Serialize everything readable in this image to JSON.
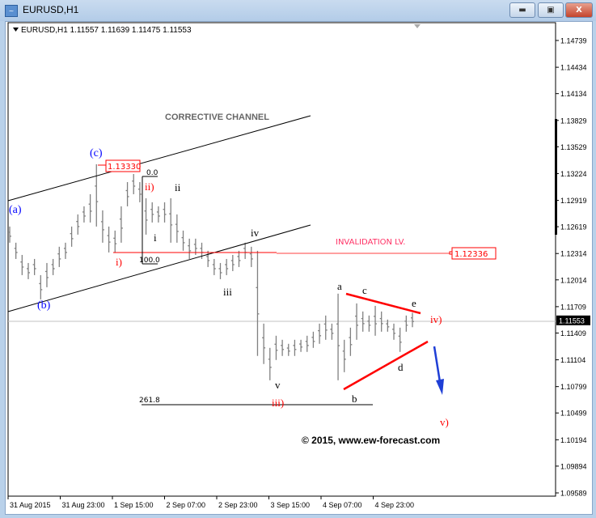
{
  "window": {
    "title": "EURUSD,H1",
    "minimize_icon": "minimize-icon",
    "maximize_icon": "restore-icon",
    "close_icon": "close-icon"
  },
  "chart_data": {
    "type": "ohlc-bar",
    "symbol_header": "EURUSD,H1  1.11557 1.11639 1.11475 1.11553",
    "current_price": 1.11553,
    "current_price_label": "1.11553",
    "ylim": [
      1.09589,
      1.14739
    ],
    "y_ticks": [
      "1.14739",
      "1.14434",
      "1.14134",
      "1.13829",
      "1.13529",
      "1.13224",
      "1.12919",
      "1.12619",
      "1.12314",
      "1.12014",
      "1.11709",
      "1.11409",
      "1.11104",
      "1.10799",
      "1.10499",
      "1.10194",
      "1.09894",
      "1.09589"
    ],
    "x_ticks": [
      "31 Aug 2015",
      "31 Aug 23:00",
      "1 Sep 15:00",
      "2 Sep 07:00",
      "2 Sep 23:00",
      "3 Sep 15:00",
      "4 Sep 07:00",
      "4 Sep 23:00"
    ],
    "highs": [
      1.12621,
      1.12437,
      1.12298,
      1.12206,
      1.12252,
      1.12068,
      1.12206,
      1.12252,
      1.12391,
      1.12437,
      1.12621,
      1.12759,
      1.12851,
      1.12989,
      1.1333,
      1.12805,
      1.12621,
      1.12575,
      1.12851,
      1.13127,
      1.13219,
      1.13127,
      1.12943,
      1.12897,
      1.12851,
      1.12897,
      1.12943,
      1.12759,
      1.12575,
      1.12483,
      1.12483,
      1.12437,
      1.12345,
      1.12252,
      1.12206,
      1.12252,
      1.12298,
      1.12345,
      1.12437,
      1.12391,
      1.12345,
      1.11516,
      1.1124,
      1.11378,
      1.11332,
      1.11286,
      1.11332,
      1.11332,
      1.11378,
      1.11424,
      1.11516,
      1.11608,
      1.11516,
      1.11857,
      1.11332,
      1.1147,
      1.11746,
      1.11654,
      1.11608,
      1.11718,
      1.11654,
      1.11562,
      1.11516,
      1.1147,
      1.11608,
      1.11639
    ],
    "lows": [
      1.12437,
      1.12252,
      1.12068,
      1.12022,
      1.12068,
      1.11792,
      1.1193,
      1.12068,
      1.1216,
      1.12252,
      1.12391,
      1.12529,
      1.12667,
      1.12667,
      1.12621,
      1.12437,
      1.12326,
      1.12326,
      1.12437,
      1.12851,
      1.12989,
      1.12897,
      1.12529,
      1.12667,
      1.12667,
      1.12667,
      1.12437,
      1.12437,
      1.12345,
      1.12252,
      1.12298,
      1.12252,
      1.1216,
      1.12068,
      1.12022,
      1.12068,
      1.12114,
      1.1216,
      1.12252,
      1.1216,
      1.11148,
      1.11056,
      1.10871,
      1.11102,
      1.11148,
      1.11148,
      1.11148,
      1.11194,
      1.11194,
      1.1124,
      1.11286,
      1.11332,
      1.11332,
      1.10871,
      1.10963,
      1.11148,
      1.11332,
      1.11424,
      1.11424,
      1.11378,
      1.11424,
      1.11424,
      1.11332,
      1.11194,
      1.11424,
      1.11475
    ],
    "colors": {
      "bars": "#808080",
      "wave_labels_blue": "#0000ff",
      "wave_labels_red": "#ff0000",
      "invalidation": "#ff0000",
      "triangle": "#ff0000",
      "arrow": "#1f3fd6"
    },
    "annotations": {
      "watermark": "CORRECTIVE CHANNEL",
      "invalidation_label": "INVALIDATION LV.",
      "invalidation_price": "1.12336",
      "high_price": "1.13330",
      "fib_0": "0.0",
      "fib_100": "100.0",
      "fib_261": "261.8",
      "copyright": "© 2015, www.ew-forecast.com",
      "waves": {
        "a_blue": "(a)",
        "b_blue": "(b)",
        "c_blue": "(c)",
        "i_red": "i)",
        "ii_red": "ii)",
        "iii_red": "iii)",
        "iv_red": "iv)",
        "v_red": "v)",
        "i": "i",
        "ii": "ii",
        "iii": "iii",
        "iv": "iv",
        "v": "v",
        "a": "a",
        "b": "b",
        "c": "c",
        "d": "d",
        "e": "e"
      }
    }
  }
}
